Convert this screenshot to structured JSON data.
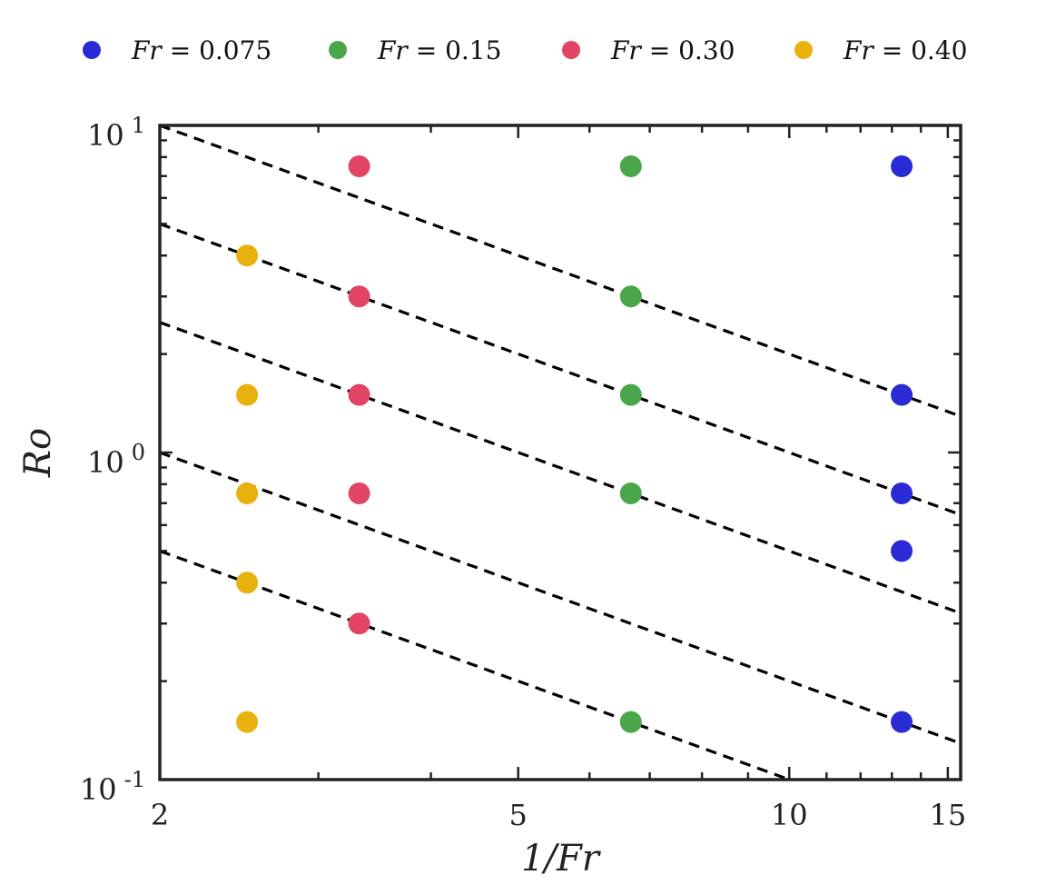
{
  "chart_data": {
    "type": "scatter",
    "title": "",
    "xlabel": "1/Fr",
    "ylabel": "Ro",
    "xscale": "log",
    "yscale": "log",
    "xlim": [
      2,
      15.5
    ],
    "ylim": [
      0.1,
      10
    ],
    "grid": false,
    "legend_position": "top",
    "xticks": [
      {
        "value": 2,
        "label": "2"
      },
      {
        "value": 5,
        "label": "5"
      },
      {
        "value": 10,
        "label": "10"
      },
      {
        "value": 15,
        "label": "15"
      }
    ],
    "yticks": [
      {
        "value": 0.1,
        "base": "10",
        "exp": "-1"
      },
      {
        "value": 1,
        "base": "10",
        "exp": "0"
      },
      {
        "value": 10,
        "base": "10",
        "exp": "1"
      }
    ],
    "series": [
      {
        "name": "Fr = 0.075",
        "var": "Fr",
        "value_label": "0.075",
        "color": "#2b2bd6",
        "x": 13.33,
        "y": [
          7.5,
          1.5,
          0.75,
          0.5,
          0.15
        ]
      },
      {
        "name": "Fr = 0.15",
        "var": "Fr",
        "value_label": "0.15",
        "color": "#4aa64a",
        "x": 6.67,
        "y": [
          7.5,
          3.0,
          1.5,
          0.75,
          0.15
        ]
      },
      {
        "name": "Fr = 0.30",
        "var": "Fr",
        "value_label": "0.30",
        "color": "#e14563",
        "x": 3.33,
        "y": [
          7.5,
          3.0,
          1.5,
          0.75,
          0.3
        ]
      },
      {
        "name": "Fr = 0.40",
        "var": "Fr",
        "value_label": "0.40",
        "color": "#e9b10e",
        "x": 2.5,
        "y": [
          4.0,
          1.5,
          0.75,
          0.4,
          0.15
        ]
      }
    ],
    "reference_lines": {
      "style": "dashed",
      "color": "#000000",
      "slope": -1,
      "y_at_x2": [
        10,
        5,
        2.5,
        1,
        0.5
      ]
    }
  }
}
